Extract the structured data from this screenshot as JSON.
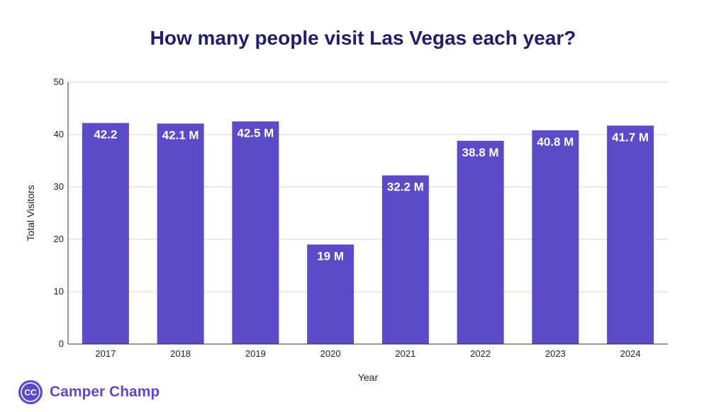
{
  "brand": {
    "name": "Camper Champ",
    "logo_text": "CC",
    "color": "#5b4bc8"
  },
  "chart_data": {
    "type": "bar",
    "title": "How many people visit Las Vegas each year?",
    "xlabel": "Year",
    "ylabel": "Total Visitors",
    "ylim": [
      0,
      50
    ],
    "yticks": [
      0,
      10,
      20,
      30,
      40,
      50
    ],
    "grid": true,
    "legend": "none",
    "bar_color": "#5b4bc8",
    "categories": [
      "2017",
      "2018",
      "2019",
      "2020",
      "2021",
      "2022",
      "2023",
      "2024"
    ],
    "values": [
      42.2,
      42.1,
      42.5,
      19,
      32.2,
      38.8,
      40.8,
      41.7
    ],
    "data_labels": [
      "42.2",
      "42.1 M",
      "42.5 M",
      "19 M",
      "32.2 M",
      "38.8 M",
      "40.8 M",
      "41.7 M"
    ]
  }
}
